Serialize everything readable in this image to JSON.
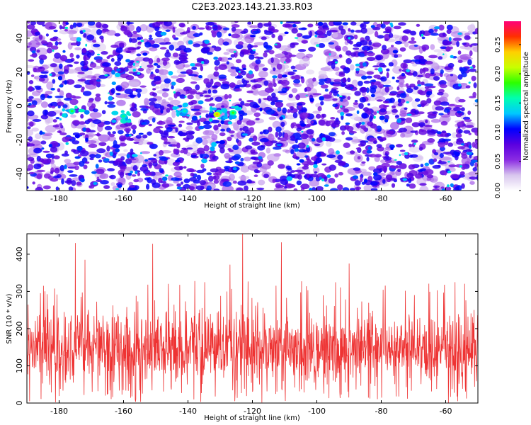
{
  "figure_title": "C2E3.2023.143.21.33.R03",
  "chart_data": [
    {
      "type": "heatmap",
      "xlabel": "Height of straight line (km)",
      "ylabel": "Frequency (Hz)",
      "xlim": [
        -190,
        -50
      ],
      "ylim": [
        -50,
        50
      ],
      "xticks": [
        -180,
        -160,
        -140,
        -120,
        -100,
        -80,
        -60
      ],
      "yticks": [
        -40,
        -20,
        0,
        20,
        40
      ],
      "grid": false,
      "colorbar": {
        "label": "Normalized spectral amplitude",
        "range": [
          0.0,
          0.29
        ],
        "ticks": [
          "0.00",
          "0.05",
          "0.10",
          "0.15",
          "0.20",
          "0.25"
        ],
        "tick_values": [
          0.0,
          0.05,
          0.1,
          0.15,
          0.2,
          0.25
        ],
        "colormap": [
          "#ffffff",
          "#d8c6ee",
          "#8a2be2",
          "#5a00e0",
          "#0000ff",
          "#00c8ff",
          "#00ffb0",
          "#2cff00",
          "#c8ff00",
          "#ffd000",
          "#ff3000",
          "#ff0078"
        ]
      },
      "description_values": {
        "background_level": 0.03,
        "typical_peak": 0.08,
        "bright_clusters": [
          {
            "x": -176,
            "y": -3,
            "value": 0.16
          },
          {
            "x": -160,
            "y": -6,
            "value": 0.15
          },
          {
            "x": -131,
            "y": -5,
            "value": 0.22
          },
          {
            "x": -126,
            "y": -4,
            "value": 0.17
          },
          {
            "x": -141,
            "y": -3,
            "value": 0.14
          }
        ]
      }
    },
    {
      "type": "line",
      "xlabel": "Height of straight line (km)",
      "ylabel": "SNR (10 * v/v)",
      "xlim": [
        -190,
        -50
      ],
      "ylim": [
        0,
        455
      ],
      "xticks": [
        -180,
        -160,
        -140,
        -120,
        -100,
        -80,
        -60
      ],
      "yticks": [
        0,
        100,
        200,
        300,
        400
      ],
      "grid": false,
      "series": [
        {
          "color": "#ee3333",
          "baseline_mean": 120,
          "typical_band": [
            60,
            250
          ],
          "notable_peaks": [
            {
              "x": -175,
              "y": 430
            },
            {
              "x": -151,
              "y": 428
            },
            {
              "x": -123,
              "y": 455
            },
            {
              "x": -111,
              "y": 432
            },
            {
              "x": -172,
              "y": 385
            },
            {
              "x": -90,
              "y": 375
            },
            {
              "x": -127,
              "y": 372
            }
          ]
        }
      ]
    }
  ]
}
